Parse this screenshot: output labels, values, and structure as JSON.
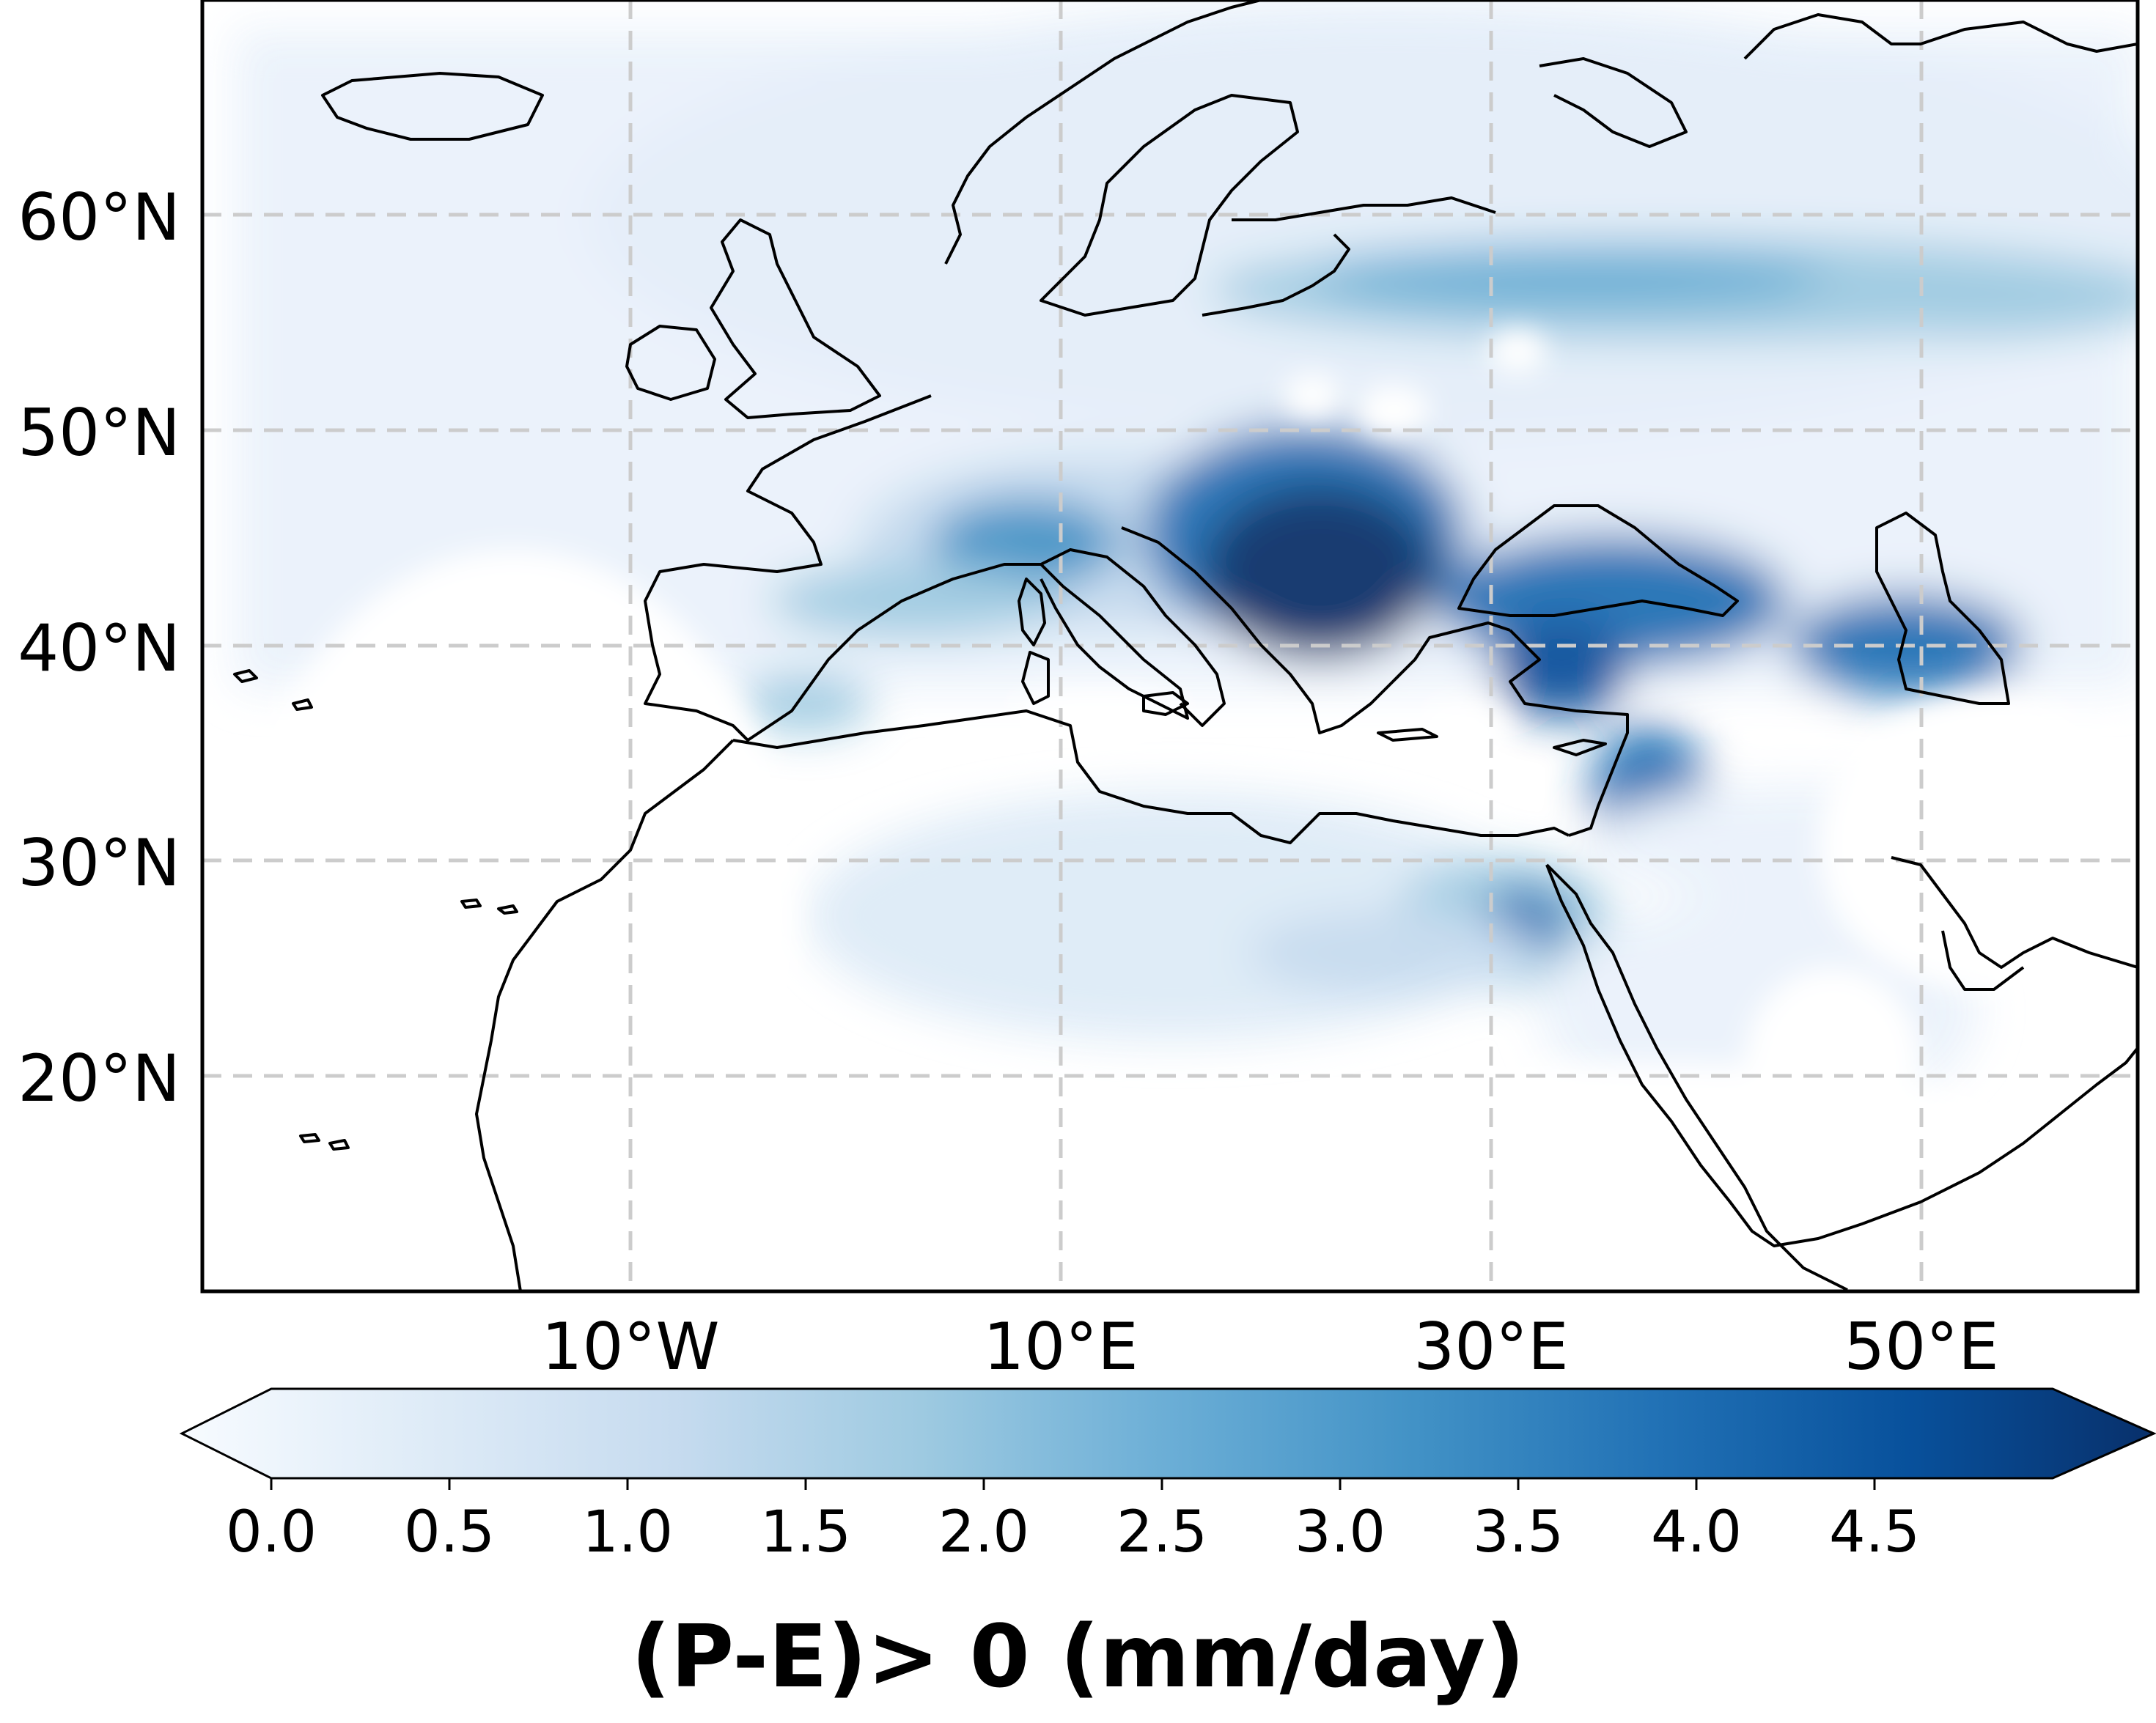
{
  "map": {
    "latitude_labels": [
      "60°N",
      "50°N",
      "40°N",
      "30°N",
      "20°N"
    ],
    "longitude_labels": [
      "10°W",
      "10°E",
      "30°E",
      "50°E"
    ],
    "gridlines": true,
    "gridline_style": "dashed",
    "colormap": "Blues",
    "land_outline_color": "#000000"
  },
  "colorbar": {
    "label": "(P-E)> 0 (mm/day)",
    "ticks": [
      "0.0",
      "0.5",
      "1.0",
      "1.5",
      "2.0",
      "2.5",
      "3.0",
      "3.5",
      "4.0",
      "4.5"
    ],
    "range": [
      0,
      5
    ],
    "extend": "both",
    "colors": [
      "#f7fbff",
      "#deebf7",
      "#c6dbef",
      "#9ecae1",
      "#6baed6",
      "#4292c6",
      "#2171b5",
      "#08519c",
      "#08306b"
    ]
  }
}
